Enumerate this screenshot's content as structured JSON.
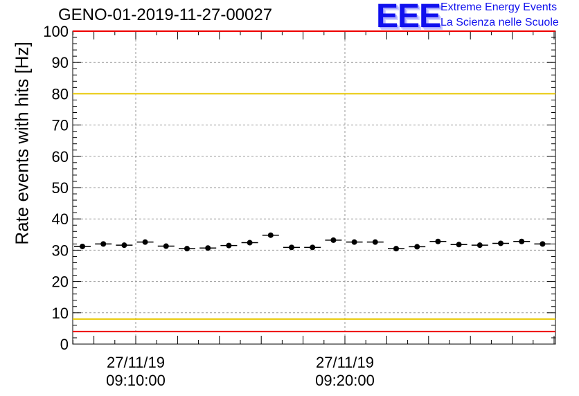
{
  "chart_data": {
    "type": "scatter",
    "title": "GENO-01-2019-11-27-00027",
    "ylabel": "Rate events with hits [Hz]",
    "xlabel": "",
    "ylim": [
      0,
      100
    ],
    "yticks": [
      "0",
      "10",
      "20",
      "30",
      "40",
      "50",
      "60",
      "70",
      "80",
      "90",
      "100"
    ],
    "x_tick_labels": [
      {
        "date": "27/11/19",
        "time": "09:10:00"
      },
      {
        "date": "27/11/19",
        "time": "09:20:00"
      }
    ],
    "values": [
      31.2,
      32.0,
      31.6,
      32.6,
      31.3,
      30.5,
      30.7,
      31.5,
      32.4,
      34.8,
      30.9,
      30.9,
      33.2,
      32.6,
      32.6,
      30.5,
      31.1,
      32.8,
      31.8,
      31.6,
      32.2,
      32.8,
      32.0
    ],
    "reference_lines": [
      {
        "name": "upper-red-line",
        "value": 100,
        "color": "#ee0000"
      },
      {
        "name": "upper-yellow-line",
        "value": 80,
        "color": "#e8c800"
      },
      {
        "name": "lower-yellow-line",
        "value": 8,
        "color": "#e8c800"
      },
      {
        "name": "lower-red-line",
        "value": 4,
        "color": "#ee0000"
      }
    ],
    "grid": true
  },
  "logo": {
    "mark": "EEE",
    "line1": "Extreme Energy Events",
    "line2": "La Scienza nelle Scuole"
  }
}
